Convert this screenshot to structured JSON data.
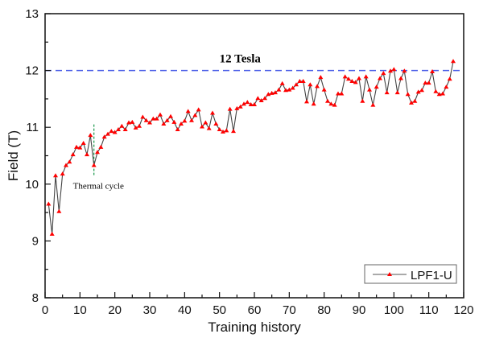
{
  "chart_data": {
    "type": "line",
    "title": "",
    "xlabel": "Training history",
    "ylabel": "Field (T)",
    "xlim": [
      0,
      120
    ],
    "ylim": [
      8,
      13
    ],
    "xticks": [
      0,
      10,
      20,
      30,
      40,
      50,
      60,
      70,
      80,
      90,
      100,
      110,
      120
    ],
    "yticks": [
      8,
      9,
      10,
      11,
      12,
      13
    ],
    "grid": false,
    "legend_placement": "bottom-right",
    "series": [
      {
        "name": "LPF1-U",
        "line_color": "#444444",
        "marker_color": "#ff0000",
        "marker": "triangle",
        "x": [
          1,
          2,
          3,
          4,
          5,
          6,
          7,
          8,
          9,
          10,
          11,
          12,
          13,
          14,
          15,
          16,
          17,
          18,
          19,
          20,
          21,
          22,
          23,
          24,
          25,
          26,
          27,
          28,
          29,
          30,
          31,
          32,
          33,
          34,
          35,
          36,
          37,
          38,
          39,
          40,
          41,
          42,
          43,
          44,
          45,
          46,
          47,
          48,
          49,
          50,
          51,
          52,
          53,
          54,
          55,
          56,
          57,
          58,
          59,
          60,
          61,
          62,
          63,
          64,
          65,
          66,
          67,
          68,
          69,
          70,
          71,
          72,
          73,
          74,
          75,
          76,
          77,
          78,
          79,
          80,
          81,
          82,
          83,
          84,
          85,
          86,
          87,
          88,
          89,
          90,
          91,
          92,
          93,
          94,
          95,
          96,
          97,
          98,
          99,
          100,
          101,
          102,
          103,
          104,
          105,
          106,
          107,
          108,
          109,
          110,
          111,
          112,
          113,
          114,
          115,
          116,
          117
        ],
        "y": [
          9.65,
          9.12,
          10.15,
          9.52,
          10.18,
          10.33,
          10.39,
          10.52,
          10.65,
          10.64,
          10.72,
          10.52,
          10.86,
          10.33,
          10.56,
          10.65,
          10.83,
          10.88,
          10.93,
          10.91,
          10.96,
          11.02,
          10.96,
          11.08,
          11.09,
          10.99,
          11.02,
          11.18,
          11.12,
          11.08,
          11.15,
          11.15,
          11.22,
          11.06,
          11.12,
          11.19,
          11.09,
          10.96,
          11.06,
          11.11,
          11.28,
          11.12,
          11.21,
          11.31,
          11.01,
          11.08,
          10.98,
          11.25,
          11.06,
          10.96,
          10.92,
          10.94,
          11.32,
          10.93,
          11.33,
          11.36,
          11.41,
          11.44,
          11.4,
          11.4,
          11.51,
          11.47,
          11.51,
          11.58,
          11.6,
          11.61,
          11.66,
          11.77,
          11.65,
          11.66,
          11.69,
          11.75,
          11.81,
          11.81,
          11.45,
          11.75,
          11.41,
          11.72,
          11.88,
          11.66,
          11.46,
          11.41,
          11.39,
          11.59,
          11.59,
          11.89,
          11.85,
          11.81,
          11.79,
          11.86,
          11.46,
          11.89,
          11.66,
          11.39,
          11.71,
          11.86,
          11.95,
          11.61,
          11.99,
          12.02,
          11.61,
          11.86,
          11.99,
          11.58,
          11.43,
          11.46,
          11.62,
          11.65,
          11.78,
          11.78,
          11.98,
          11.63,
          11.58,
          11.59,
          11.71,
          11.85,
          12.16
        ]
      }
    ],
    "reference_line": {
      "y": 12,
      "color": "#4a5ee8",
      "label": "12 Tesla"
    },
    "annotations": [
      {
        "text": "Thermal cycle",
        "marker_x": 14,
        "marker_y_range": [
          10.15,
          11.05
        ],
        "marker_color": "#2ca05a"
      }
    ]
  }
}
